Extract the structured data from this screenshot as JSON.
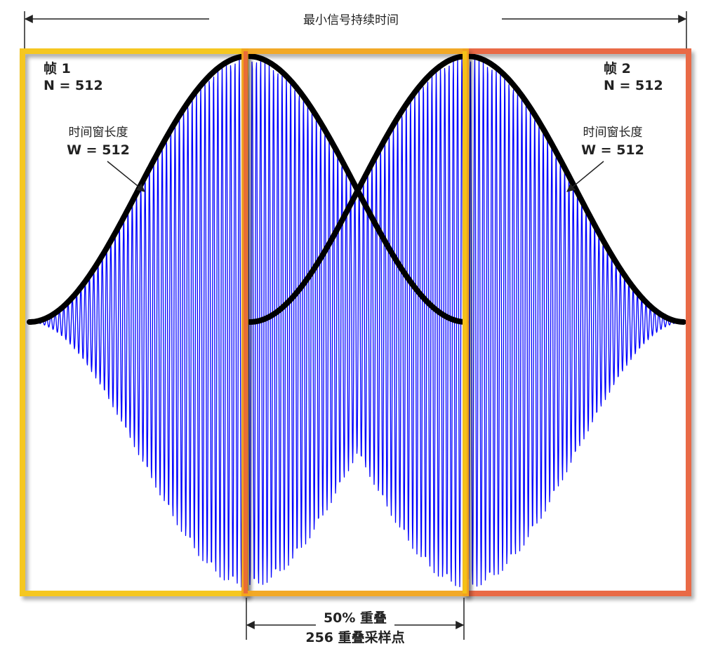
{
  "header": {
    "title": "最小信号持续时间"
  },
  "frame1": {
    "label": "帧 1",
    "n": "N = 512",
    "window_label": "时间窗长度",
    "window_value": "W = 512"
  },
  "frame2": {
    "label": "帧 2",
    "n": "N = 512",
    "window_label": "时间窗长度",
    "window_value": "W = 512"
  },
  "overlap": {
    "percent": "50% 重叠",
    "samples": "256 重叠采样点"
  },
  "colors": {
    "frame1": "#F5C518",
    "overlap": "#F2A51A",
    "frame2": "#E8643C",
    "signal": "#0000FF",
    "envelope": "#000000"
  }
}
